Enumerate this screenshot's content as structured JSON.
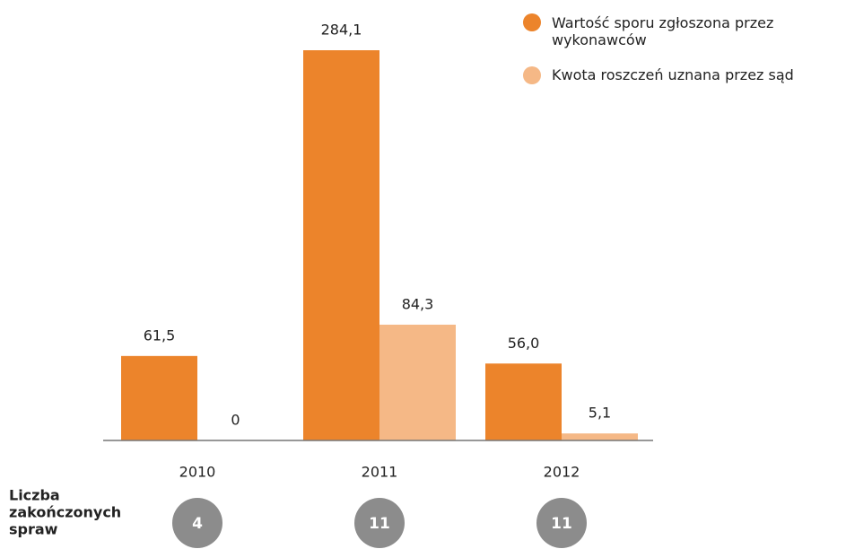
{
  "chart_data": {
    "type": "bar",
    "categories": [
      "2010",
      "2011",
      "2012"
    ],
    "series": [
      {
        "name": "Wartość sporu zgłoszona przez wykonawców",
        "color": "#ec842b",
        "values": [
          61.5,
          284.1,
          56.0
        ],
        "value_labels": [
          "61,5",
          "284,1",
          "56,0"
        ]
      },
      {
        "name": "Kwota roszczeń uznana przez sąd",
        "color": "#f5b886",
        "values": [
          0,
          84.3,
          5.1
        ],
        "value_labels": [
          "0",
          "84,3",
          "5,1"
        ]
      }
    ],
    "legend": "top-right",
    "counts_label": [
      "Liczba",
      "zakończonych",
      "spraw"
    ],
    "counts": [
      4,
      11,
      11
    ],
    "counts_color": "#8c8c8c"
  }
}
